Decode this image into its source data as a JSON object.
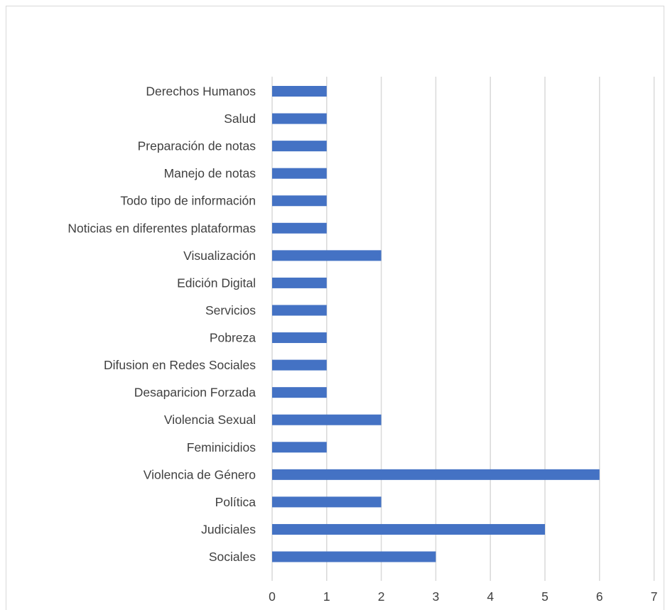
{
  "chart_data": {
    "type": "bar",
    "orientation": "horizontal",
    "title": "",
    "xlabel": "",
    "ylabel": "",
    "categories": [
      "Derechos Humanos",
      "Salud",
      "Preparación de notas",
      "Manejo de notas",
      "Todo tipo de información",
      "Noticias en diferentes plataformas",
      "Visualización",
      "Edición Digital",
      "Servicios",
      "Pobreza",
      "Difusion en Redes Sociales",
      "Desaparicion Forzada",
      "Violencia Sexual",
      "Feminicidios",
      "Violencia de Género",
      "Política",
      "Judiciales",
      "Sociales"
    ],
    "values": [
      1,
      1,
      1,
      1,
      1,
      1,
      2,
      1,
      1,
      1,
      1,
      1,
      2,
      1,
      6,
      2,
      5,
      3
    ],
    "xlim": [
      0,
      7
    ],
    "ticks": [
      "0",
      "1",
      "2",
      "3",
      "4",
      "5",
      "6",
      "7"
    ],
    "grid": "vertical",
    "bar_color": "#4472c4",
    "legend": "none"
  }
}
